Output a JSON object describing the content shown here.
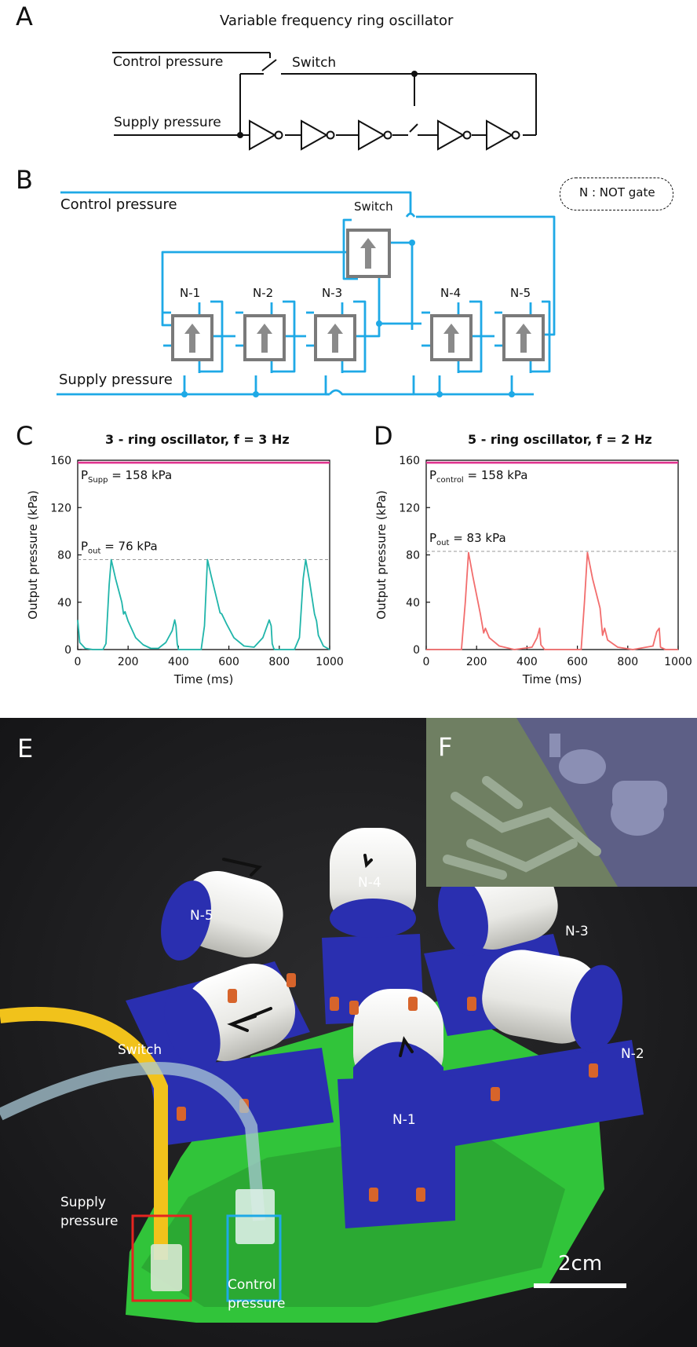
{
  "panels": {
    "a": "A",
    "b": "B",
    "c": "C",
    "d": "D",
    "e": "E",
    "f": "F"
  },
  "panel_a": {
    "title": "Variable frequency ring oscillator",
    "control_pressure": "Control pressure",
    "switch": "Switch",
    "supply_pressure": "Supply pressure"
  },
  "panel_b": {
    "control_pressure": "Control pressure",
    "switch": "Switch",
    "supply_pressure": "Supply pressure",
    "legend": "N : NOT gate",
    "gates": [
      "N-1",
      "N-2",
      "N-3",
      "N-4",
      "N-5"
    ]
  },
  "chart_data": [
    {
      "type": "line",
      "title": "3 - ring oscillator, f  = 3 Hz",
      "xlabel": "Time (ms)",
      "ylabel": "Output pressure (kPa)",
      "xlim": [
        0,
        1000
      ],
      "ylim": [
        0,
        160
      ],
      "xticks": [
        0,
        200,
        400,
        600,
        800,
        1000
      ],
      "yticks": [
        0,
        40,
        80,
        120,
        160
      ],
      "annotations": {
        "supply_sub": "Supp",
        "supply_prefix": "P",
        "supply_value": " = 158 kPa",
        "out_sub": "out",
        "out_prefix": "P",
        "out_value": " = 76 kPa"
      },
      "reference_lines": [
        158,
        76
      ],
      "series": [
        {
          "color": "#20b5aa",
          "x": [
            0,
            8,
            30,
            60,
            100,
            112,
            125,
            133,
            150,
            175,
            182,
            188,
            200,
            230,
            260,
            290,
            320,
            350,
            375,
            385,
            390,
            395,
            400,
            440,
            490,
            503,
            515,
            530,
            555,
            565,
            572,
            590,
            620,
            660,
            700,
            735,
            760,
            768,
            772,
            778,
            782,
            815,
            860,
            880,
            895,
            905,
            920,
            940,
            948,
            955,
            975,
            1000
          ],
          "y": [
            25,
            6,
            1,
            0,
            0,
            5,
            55,
            76,
            60,
            40,
            30,
            32,
            24,
            10,
            4,
            1,
            1,
            6,
            16,
            25,
            20,
            5,
            0,
            0,
            0,
            20,
            76,
            62,
            40,
            31,
            30,
            22,
            10,
            3,
            2,
            10,
            25,
            20,
            5,
            1,
            0,
            0,
            0,
            10,
            60,
            76,
            58,
            30,
            24,
            12,
            3,
            0
          ]
        }
      ]
    },
    {
      "type": "line",
      "title": "5 - ring oscillator, f  = 2 Hz",
      "xlabel": "Time (ms)",
      "ylabel": "Output pressure (kPa)",
      "xlim": [
        0,
        1000
      ],
      "ylim": [
        0,
        160
      ],
      "xticks": [
        0,
        200,
        400,
        600,
        800,
        1000
      ],
      "yticks": [
        0,
        40,
        80,
        120,
        160
      ],
      "annotations": {
        "supply_sub": "control",
        "supply_prefix": "P",
        "supply_value": " = 158 kPa",
        "out_sub": "out",
        "out_prefix": "P",
        "out_value": " = 83 kPa"
      },
      "reference_lines": [
        158,
        83
      ],
      "series": [
        {
          "color": "#f26d6d",
          "x": [
            0,
            140,
            155,
            168,
            185,
            215,
            228,
            235,
            250,
            290,
            350,
            420,
            440,
            450,
            455,
            470,
            560,
            615,
            628,
            640,
            660,
            690,
            700,
            708,
            720,
            760,
            820,
            900,
            915,
            925,
            930,
            950,
            1000
          ],
          "y": [
            0,
            0,
            40,
            82,
            62,
            30,
            14,
            18,
            10,
            3,
            0,
            2,
            10,
            18,
            4,
            0,
            0,
            0,
            40,
            82,
            60,
            35,
            12,
            18,
            8,
            2,
            0,
            3,
            15,
            18,
            2,
            0,
            0
          ]
        }
      ]
    }
  ],
  "panel_e": {
    "gates": [
      "N-1",
      "N-2",
      "N-3",
      "N-4",
      "N-5"
    ],
    "switch": "Switch",
    "supply": [
      "Supply",
      "pressure"
    ],
    "control": [
      "Control",
      "pressure"
    ],
    "scale": "2cm"
  },
  "colors": {
    "tube": "#1ea9e6",
    "gate": "#7a7a7a",
    "teal": "#20b5aa",
    "salmon": "#f26d6d",
    "magenta": "#e0338f",
    "green": "#35d23a",
    "blue": "#2a2fb0"
  }
}
